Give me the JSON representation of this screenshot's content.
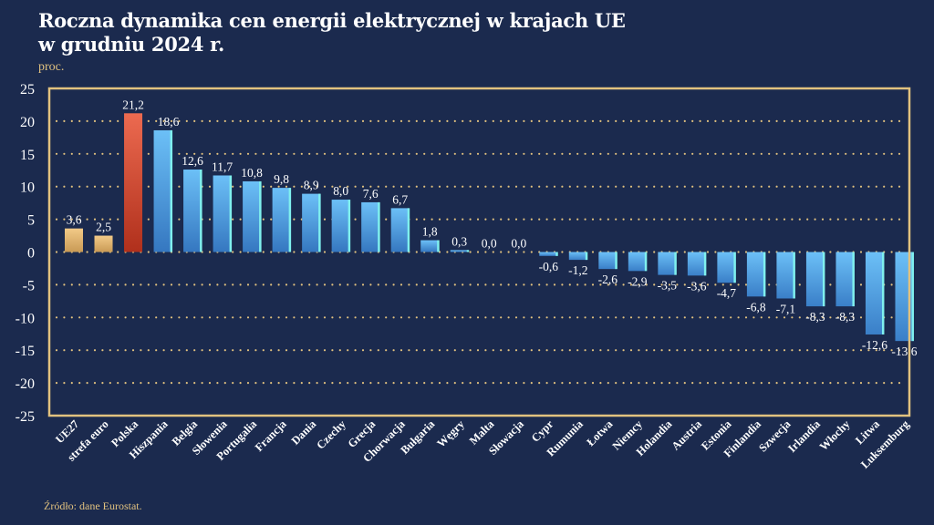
{
  "header": {
    "title_line1": "Roczna dynamika cen energii elektrycznej w krajach UE",
    "title_line2": "w grudniu 2024 r.",
    "unit": "proc."
  },
  "footer": {
    "source": "Źródło: dane Eurostat."
  },
  "colors": {
    "background": "#1b2a4e",
    "frame": "#e2c27f",
    "gridline": "#e2c27f",
    "bar_aggregate": "#e6b873",
    "bar_highlight": "#d8553a",
    "bar_default": "#4a9de0",
    "bar_edge": "#7ff0ee"
  },
  "chart_data": {
    "type": "bar",
    "title": "Roczna dynamika cen energii elektrycznej w krajach UE w grudniu 2024 r.",
    "xlabel": "",
    "ylabel": "proc.",
    "ylim": [
      -25,
      25
    ],
    "yticks": [
      25,
      20,
      15,
      10,
      5,
      0,
      -5,
      -10,
      -15,
      -20,
      -25
    ],
    "grid": true,
    "legend": "none",
    "categories": [
      "UE27",
      "strefa euro",
      "Polska",
      "Hiszpania",
      "Belgia",
      "Słowenia",
      "Portugalia",
      "Francja",
      "Dania",
      "Czechy",
      "Grecja",
      "Chorwacja",
      "Bułgaria",
      "Węgry",
      "Malta",
      "Słowacja",
      "Cypr",
      "Rumunia",
      "Łotwa",
      "Niemcy",
      "Holandia",
      "Austria",
      "Estonia",
      "Finlandia",
      "Szwecja",
      "Irlandia",
      "Włochy",
      "Litwa",
      "Luksemburg"
    ],
    "values": [
      3.6,
      2.5,
      21.2,
      18.6,
      12.6,
      11.7,
      10.8,
      9.8,
      8.9,
      8.0,
      7.6,
      6.7,
      1.8,
      0.3,
      0.0,
      0.0,
      -0.6,
      -1.2,
      -2.6,
      -2.9,
      -3.5,
      -3.6,
      -4.7,
      -6.8,
      -7.1,
      -8.3,
      -8.3,
      -12.6,
      -13.6
    ],
    "labels": [
      "3,6",
      "2,5",
      "21,2",
      "18,6",
      "12,6",
      "11,7",
      "10,8",
      "9,8",
      "8,9",
      "8,0",
      "7,6",
      "6,7",
      "1,8",
      "0,3",
      "0,0",
      "0,0",
      "-0,6",
      "-1,2",
      "-2,6",
      "-2,9",
      "-3,5",
      "-3,6",
      "-4,7",
      "-6,8",
      "-7,1",
      "-8,3",
      "-8,3",
      "-12,6",
      "-13,6"
    ],
    "bar_kind": [
      "aggregate",
      "aggregate",
      "highlight",
      "default",
      "default",
      "default",
      "default",
      "default",
      "default",
      "default",
      "default",
      "default",
      "default",
      "default",
      "default",
      "default",
      "default",
      "default",
      "default",
      "default",
      "default",
      "default",
      "default",
      "default",
      "default",
      "default",
      "default",
      "default",
      "default"
    ]
  }
}
